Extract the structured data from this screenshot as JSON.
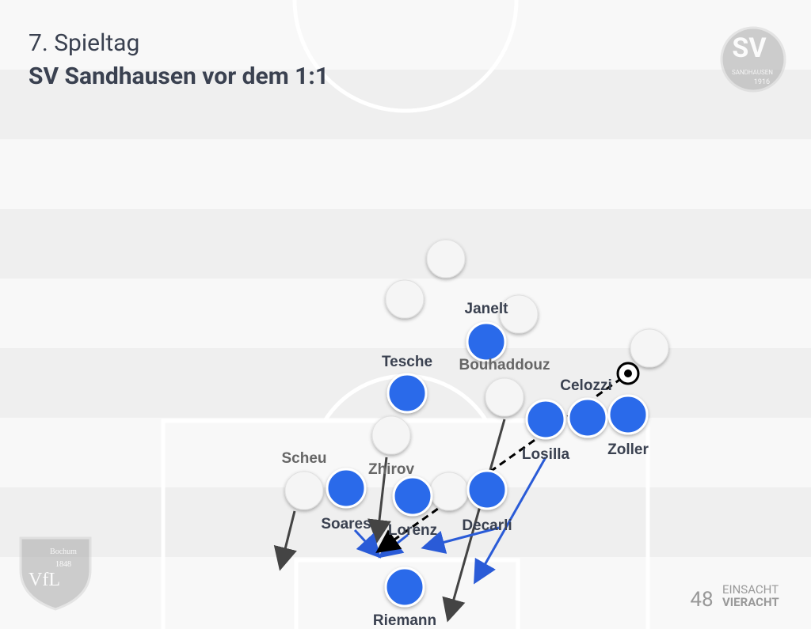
{
  "header": {
    "subtitle": "7. Spieltag",
    "title": "SV Sandhausen vor dem 1:1"
  },
  "players": {
    "blue": [
      "Janelt",
      "Tesche",
      "Celozzi",
      "Zoller",
      "Losilla",
      "Soares",
      "Lorenz",
      "Decarli",
      "Riemann"
    ],
    "white": [
      "Bouhaddouz",
      "Scheu",
      "Zhirov"
    ]
  },
  "logos": {
    "sandhausen": {
      "initials": "SV",
      "name": "SANDHAUSEN",
      "year": "1916"
    },
    "bochum": {
      "initials": "VfL",
      "name": "Bochum",
      "year": "1848"
    },
    "brand": {
      "number": "48",
      "line1": "EINSACHT",
      "line2": "VIERACHT"
    }
  }
}
